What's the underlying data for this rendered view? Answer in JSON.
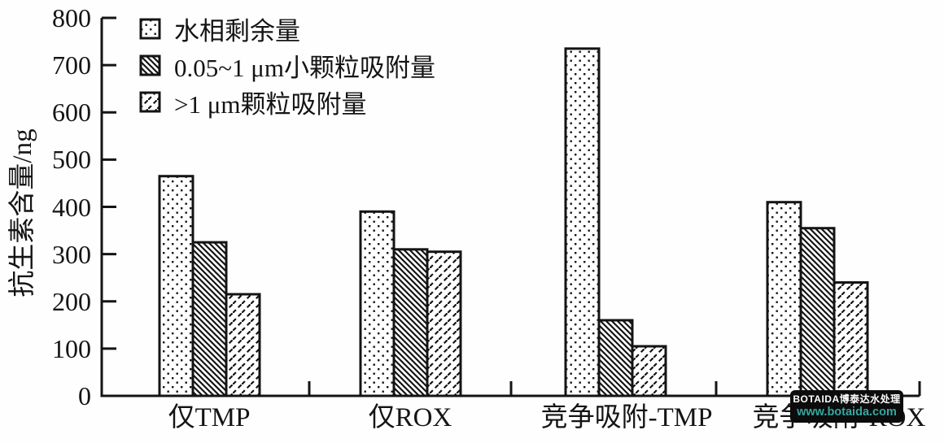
{
  "chart_data": {
    "type": "bar",
    "title": "",
    "xlabel": "",
    "ylabel": "抗生素含量/ng",
    "ylim": [
      0,
      800
    ],
    "yticks": [
      0,
      100,
      200,
      300,
      400,
      500,
      600,
      700,
      800
    ],
    "grid": false,
    "legend_position": "top-left-inside",
    "categories": [
      "仅TMP",
      "仅ROX",
      "竞争吸附-TMP",
      "竞争吸附-ROX"
    ],
    "series": [
      {
        "name": "水相剩余量",
        "pattern": "dots",
        "values": [
          465,
          390,
          735,
          410
        ]
      },
      {
        "name": "0.05~1 μm小颗粒吸附量",
        "pattern": "diagonal-hatch",
        "values": [
          325,
          310,
          160,
          355
        ]
      },
      {
        "name": ">1 μm颗粒吸附量",
        "pattern": "diagonal-dash",
        "values": [
          215,
          305,
          105,
          240
        ]
      }
    ]
  },
  "watermark": {
    "line1": "BOTAIDA博泰达水处理",
    "line2": "www.botaida.com",
    "bg_color": "#0c0c0c",
    "line1_color": "#ffffff",
    "line2_color": "#36a79e"
  },
  "colors": {
    "ink": "#141414",
    "background": "#fefefe"
  }
}
